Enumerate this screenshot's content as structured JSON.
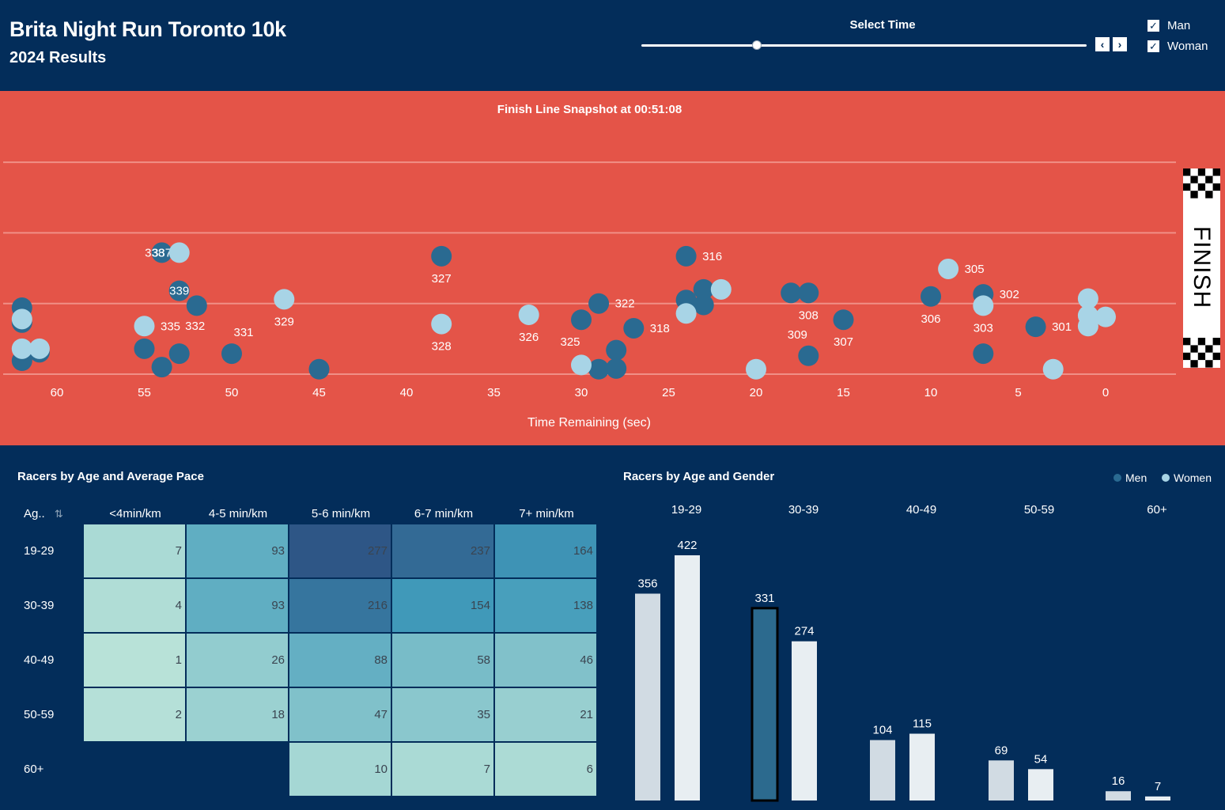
{
  "header": {
    "title": "Brita Night Run Toronto 10k",
    "subtitle": "2024 Results",
    "slider_label": "Select Time",
    "slider_position": 0.26,
    "prev_icon": "chevron-left-icon",
    "next_icon": "chevron-right-icon",
    "filters": [
      {
        "label": "Man",
        "checked": true
      },
      {
        "label": "Woman",
        "checked": true
      }
    ]
  },
  "snapshot": {
    "title_prefix": "Finish Line Snapshot at ",
    "time": "00:51:08",
    "finish_label": "FINISH",
    "colors": {
      "background": "#e45448",
      "men": "#2a6a91",
      "women": "#a8d4e6"
    }
  },
  "chart_data": [
    {
      "type": "scatter",
      "title": "",
      "xlabel": "Time Remaining (sec)",
      "x_ticks": [
        60,
        55,
        50,
        45,
        40,
        35,
        30,
        25,
        20,
        15,
        10,
        5,
        0
      ],
      "xlim": [
        61.5,
        -0.5
      ],
      "ylim": [
        0,
        3
      ],
      "grid": "horizontal lanes",
      "series": [
        {
          "name": "Men",
          "color": "#2a6a91",
          "points": [
            {
              "x": 54,
              "y": 1.72,
              "label": "337"
            },
            {
              "x": 53,
              "y": 1.18,
              "label": "339"
            },
            {
              "x": 62,
              "y": 0.94
            },
            {
              "x": 62,
              "y": 0.73
            },
            {
              "x": 52,
              "y": 0.97
            },
            {
              "x": 61,
              "y": 0.31
            },
            {
              "x": 62,
              "y": 0.19
            },
            {
              "x": 55,
              "y": 0.36
            },
            {
              "x": 53,
              "y": 0.29,
              "label": "332",
              "label_dx": 20,
              "label_dy": -35
            },
            {
              "x": 54,
              "y": 0.1
            },
            {
              "x": 50,
              "y": 0.29,
              "label": "331",
              "label_dx": 15,
              "label_dy": -27
            },
            {
              "x": 45,
              "y": 0.07
            },
            {
              "x": 38,
              "y": 1.67,
              "label": "327",
              "label_dy": 28
            },
            {
              "x": 29,
              "y": 1.0,
              "label": "322",
              "label_dx": 33
            },
            {
              "x": 30,
              "y": 0.77,
              "label": "325",
              "label_dx": -14,
              "label_dy": 28
            },
            {
              "x": 27,
              "y": 0.65,
              "label": "318",
              "label_dx": 33
            },
            {
              "x": 28,
              "y": 0.34
            },
            {
              "x": 28,
              "y": 0.08
            },
            {
              "x": 29,
              "y": 0.07
            },
            {
              "x": 24,
              "y": 1.67,
              "label": "316",
              "label_dx": 33
            },
            {
              "x": 23,
              "y": 1.2
            },
            {
              "x": 24,
              "y": 1.05
            },
            {
              "x": 23,
              "y": 0.98
            },
            {
              "x": 18,
              "y": 1.15
            },
            {
              "x": 17,
              "y": 1.15,
              "label": "308",
              "label_dy": 28
            },
            {
              "x": 15,
              "y": 0.77,
              "label": "307",
              "label_dy": 28
            },
            {
              "x": 17,
              "y": 0.26,
              "label": "309",
              "label_dx": -14,
              "label_dy": -27
            },
            {
              "x": 10,
              "y": 1.1,
              "label": "306",
              "label_dy": 28
            },
            {
              "x": 7,
              "y": 1.13,
              "label": "302",
              "label_dx": 33
            },
            {
              "x": 4,
              "y": 0.67,
              "label": "301",
              "label_dx": 33
            },
            {
              "x": 7,
              "y": 0.29
            }
          ]
        },
        {
          "name": "Women",
          "color": "#a8d4e6",
          "points": [
            {
              "x": 53,
              "y": 1.72,
              "label": "338",
              "label_dx": -31
            },
            {
              "x": 62,
              "y": 0.78
            },
            {
              "x": 62,
              "y": 0.36
            },
            {
              "x": 61,
              "y": 0.36
            },
            {
              "x": 55,
              "y": 0.68,
              "label": "335",
              "label_dx": 33
            },
            {
              "x": 47,
              "y": 1.06,
              "label": "329",
              "label_dy": 28
            },
            {
              "x": 38,
              "y": 0.71,
              "label": "328",
              "label_dy": 28
            },
            {
              "x": 33,
              "y": 0.84,
              "label": "326",
              "label_dy": 28
            },
            {
              "x": 30,
              "y": 0.13
            },
            {
              "x": 24,
              "y": 0.86
            },
            {
              "x": 22,
              "y": 1.2
            },
            {
              "x": 20,
              "y": 0.07
            },
            {
              "x": 9,
              "y": 1.49,
              "label": "305",
              "label_dx": 33
            },
            {
              "x": 7,
              "y": 0.97,
              "label": "303",
              "label_dy": 28
            },
            {
              "x": 3,
              "y": 0.07
            },
            {
              "x": 1,
              "y": 1.07
            },
            {
              "x": 1,
              "y": 0.83
            },
            {
              "x": 0,
              "y": 0.81
            },
            {
              "x": 1,
              "y": 0.68
            }
          ]
        }
      ]
    },
    {
      "type": "heatmap",
      "title": "Racers by Age and Average Pace",
      "row_header": "Ag..",
      "columns": [
        "<4min/km",
        "4-5 min/km",
        "5-6 min/km",
        "6-7 min/km",
        "7+ min/km"
      ],
      "rows": [
        "19-29",
        "30-39",
        "40-49",
        "50-59",
        "60+"
      ],
      "values": [
        [
          7,
          93,
          277,
          237,
          164
        ],
        [
          4,
          93,
          216,
          154,
          138
        ],
        [
          1,
          26,
          88,
          58,
          46
        ],
        [
          2,
          18,
          47,
          35,
          21
        ],
        [
          null,
          null,
          10,
          7,
          6
        ]
      ]
    },
    {
      "type": "bar",
      "title": "Racers by Age and Gender",
      "categories": [
        "19-29",
        "30-39",
        "40-49",
        "50-59",
        "60+"
      ],
      "series": [
        {
          "name": "Men",
          "values": [
            356,
            331,
            104,
            69,
            16
          ],
          "color": "#d1dbe3"
        },
        {
          "name": "Women",
          "values": [
            422,
            274,
            115,
            54,
            7
          ],
          "color": "#e8eef2"
        }
      ],
      "highlight": {
        "series": "Men",
        "category": "30-39",
        "color": "#2c6a8e"
      },
      "legend": "top-right"
    }
  ]
}
